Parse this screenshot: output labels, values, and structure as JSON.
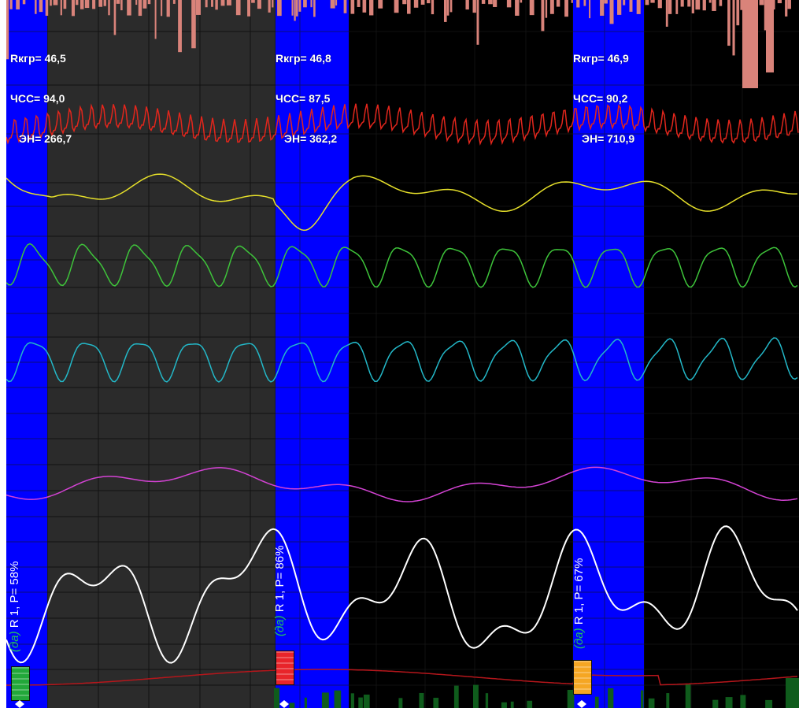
{
  "colors": {
    "background": "#000000",
    "grey_window": "#2b2b2b",
    "grid": "#222222",
    "grid_on_grey": "#111111",
    "stimulus_band": "#0000ff",
    "hist_pink": "#d9837a",
    "hist_green": "#0f5c1c"
  },
  "chart_data": {
    "type": "line",
    "grid": true,
    "segments": [
      {
        "readout": {
          "r_label": "Rкгр= 46,5",
          "hr_label": "ЧСС= 94,0",
          "en_label": "ЭН= 266,7"
        },
        "answer": "(да)",
        "answer_color": "#22c55e",
        "response_label": "R 1, P= 58%",
        "marker_color": "#22a83a"
      },
      {
        "readout": {
          "r_label": "Rкгр= 46,8",
          "hr_label": "ЧСС= 87,5",
          "en_label": "ЭН= 362,2"
        },
        "answer": "(да)",
        "answer_color": "#22c55e",
        "response_label": "R 1, P= 86%",
        "marker_color": "#e8242a"
      },
      {
        "readout": {
          "r_label": "Rкгр= 46,9",
          "hr_label": "ЧСС= 90,2",
          "en_label": "ЭН= 710,9"
        },
        "answer": "(да)",
        "answer_color": "#22c55e",
        "response_label": "R 1, P= 67%",
        "marker_color": "#f5a623"
      }
    ],
    "series": [
      {
        "color": "#e2261c",
        "kind": "respiration-fast"
      },
      {
        "color": "#e6e02a",
        "kind": "slow-wave"
      },
      {
        "color": "#3ec43a",
        "kind": "pulse-wave"
      },
      {
        "color": "#23b8c8",
        "kind": "pulse-wave"
      },
      {
        "color": "#d443d4",
        "kind": "slow-wave"
      },
      {
        "color": "#ffffff",
        "kind": "large-wave"
      },
      {
        "color": "#b5161b",
        "kind": "baseline"
      }
    ]
  }
}
